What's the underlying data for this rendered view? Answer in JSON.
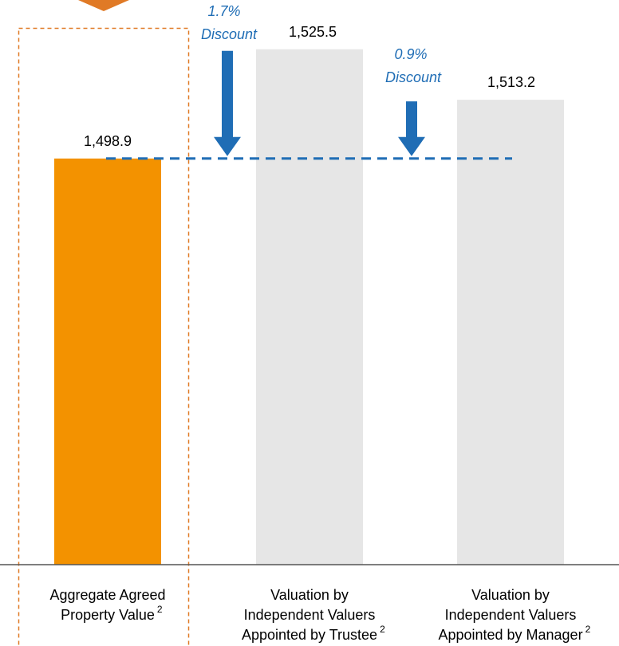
{
  "chart_data": {
    "type": "bar",
    "categories": [
      [
        "Aggregate Agreed",
        "Property Value"
      ],
      [
        "Valuation by",
        "Independent Valuers",
        "Appointed by Trustee"
      ],
      [
        "Valuation by",
        "Independent Valuers",
        "Appointed by Manager"
      ]
    ],
    "category_footnotes": [
      "2",
      "2",
      "2"
    ],
    "values": [
      1498.9,
      1525.5,
      1513.2
    ],
    "value_labels": [
      "1,498.9",
      "1,525.5",
      "1,513.2"
    ],
    "colors": [
      "#f39200",
      "#e6e6e6",
      "#e6e6e6"
    ],
    "ylim": [
      1400,
      1537.5
    ],
    "annotations": [
      {
        "lines": [
          "1.7%",
          "Discount"
        ]
      },
      {
        "lines": [
          "0.9%",
          "Discount"
        ]
      }
    ],
    "annotation_color": "#1f6db5"
  }
}
